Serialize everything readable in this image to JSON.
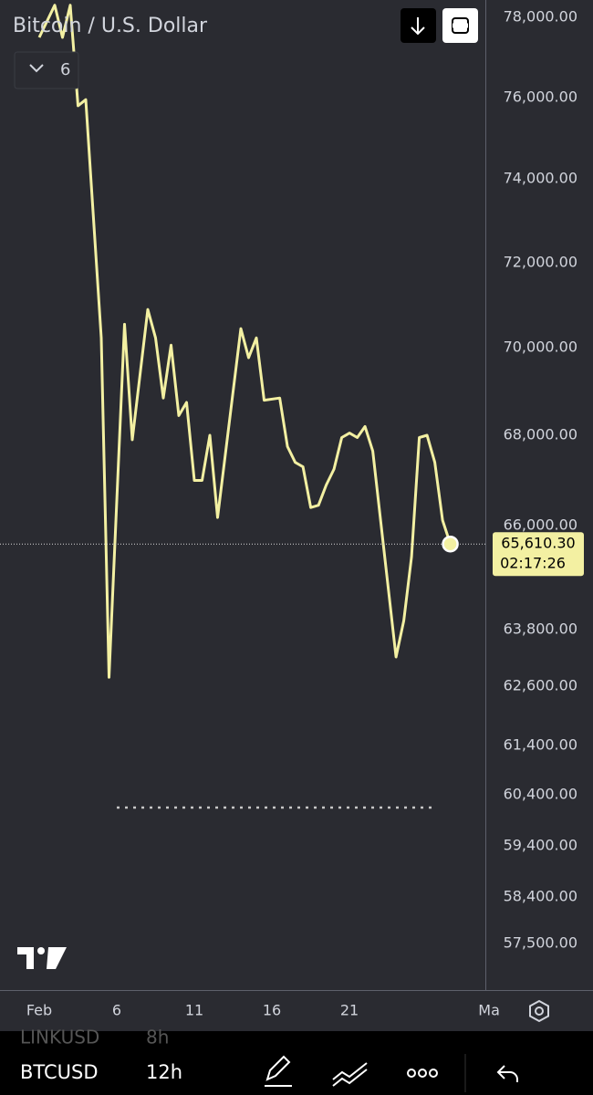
{
  "header": {
    "title": "Bitcoin / U.S. Dollar",
    "indicator_count": "6"
  },
  "chart_data": {
    "type": "line",
    "x": [
      1,
      2,
      2.5,
      3,
      3.5,
      4,
      5,
      5.5,
      6.5,
      7,
      8,
      8.5,
      9,
      9.5,
      10,
      10.5,
      11,
      11.5,
      12,
      12.5,
      14,
      14.5,
      15,
      15.5,
      16.5,
      17,
      17.5,
      18,
      18.5,
      19,
      19.5,
      20,
      20.5,
      21,
      21.5,
      22,
      22.5,
      24,
      24.5,
      25,
      25.5,
      26,
      26.5,
      27,
      27.5
    ],
    "series": [
      {
        "name": "BTCUSD",
        "color": "#f3f0a2",
        "values": [
          77500,
          78300,
          77500,
          78300,
          75800,
          75950,
          70230,
          62790,
          70550,
          67900,
          70900,
          70230,
          68850,
          70060,
          68450,
          68750,
          67000,
          67000,
          68000,
          66180,
          70450,
          69770,
          70230,
          68800,
          68850,
          67750,
          67400,
          67300,
          66400,
          66450,
          66900,
          67250,
          67950,
          68050,
          67950,
          68200,
          67650,
          63220,
          63990,
          65340,
          67950,
          68000,
          67400,
          66120,
          65610.3
        ]
      }
    ],
    "xlim": [
      -1.53,
      29.76
    ],
    "xticks": [
      {
        "value": 1,
        "label": "Feb"
      },
      6,
      11,
      16,
      21,
      {
        "value": 30,
        "label": "Ma"
      }
    ],
    "ylim": [
      56600,
      78430
    ],
    "yticks": [
      {
        "value": 78000,
        "label": "78,000.00"
      },
      {
        "value": 76000,
        "label": "76,000.00"
      },
      {
        "value": 74000,
        "label": "74,000.00"
      },
      {
        "value": 72000,
        "label": "72,000.00"
      },
      {
        "value": 70000,
        "label": "70,000.00"
      },
      {
        "value": 68000,
        "label": "68,000.00"
      },
      {
        "value": 66000,
        "label": "66,000.00"
      },
      {
        "value": 63800,
        "label": "63,800.00"
      },
      {
        "value": 62600,
        "label": "62,600.00"
      },
      {
        "value": 61400,
        "label": "61,400.00"
      },
      {
        "value": 60400,
        "label": "60,400.00"
      },
      {
        "value": 59400,
        "label": "59,400.00"
      },
      {
        "value": 58400,
        "label": "58,400.00"
      },
      {
        "value": 57500,
        "label": "57,500.00"
      }
    ],
    "price_marker": {
      "value": 65610.3,
      "label": "65,610.30",
      "countdown": "02:17:26"
    },
    "level_line": {
      "value": 60150,
      "x": [
        6,
        26.5
      ]
    }
  },
  "toolbar": {
    "symbol": "BTCUSD",
    "interval": "12h",
    "prev_symbol": "LINKUSD",
    "prev_interval": "8h"
  }
}
